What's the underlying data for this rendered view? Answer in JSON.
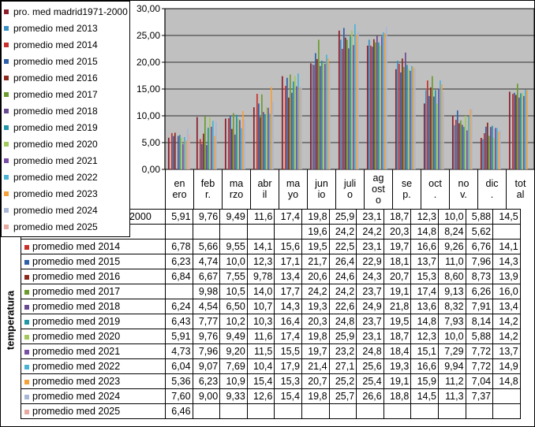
{
  "chart_data": {
    "type": "bar",
    "ylabel": "temperatura",
    "ylim": [
      0,
      30
    ],
    "yticks": [
      "0,00",
      "5,00",
      "10,00",
      "15,00",
      "20,00",
      "25,00",
      "30,00"
    ],
    "grid": true,
    "legend_position": "top-left",
    "categories": [
      "en\nero",
      "feb\nr.",
      "ma\nrzo",
      "abr\nil",
      "ma\nyo",
      "jun\nio",
      "juli\no",
      "ag\nost\no",
      "se\np.",
      "oct\n.",
      "no\nv.",
      "dic\n.",
      "tot\nal"
    ],
    "series": [
      {
        "name": "pro. med madrid1971-2000",
        "table_name": "pro. med madrid1971-2000",
        "color": "#8b1c2a",
        "values": [
          5.91,
          9.76,
          9.49,
          11.6,
          17.4,
          19.8,
          25.9,
          23.1,
          18.7,
          12.3,
          10.0,
          5.88,
          14.5
        ],
        "labels": [
          "5,91",
          "9,76",
          "9,49",
          "11,6",
          "17,4",
          "19,8",
          "25,9",
          "23,1",
          "18,7",
          "12,3",
          "10,0",
          "5,88",
          "14,5"
        ]
      },
      {
        "name": "promedio med 2013",
        "table_name": "",
        "color": "#3b8fc7",
        "values": [
          null,
          null,
          null,
          null,
          null,
          19.6,
          24.2,
          24.2,
          20.3,
          14.8,
          8.24,
          5.62,
          null
        ],
        "labels": [
          "",
          "",
          "",
          "",
          "",
          "19,6",
          "24,2",
          "24,2",
          "20,3",
          "14,8",
          "8,24",
          "5,62",
          ""
        ]
      },
      {
        "name": "promedio med 2014",
        "table_name": "promedio med 2014",
        "color": "#c9302c",
        "values": [
          6.78,
          5.66,
          9.55,
          14.1,
          15.6,
          19.5,
          22.5,
          23.1,
          19.7,
          16.6,
          9.26,
          6.76,
          14.1
        ],
        "labels": [
          "6,78",
          "5,66",
          "9,55",
          "14,1",
          "15,6",
          "19,5",
          "22,5",
          "23,1",
          "19,7",
          "16,6",
          "9,26",
          "6,76",
          "14,1"
        ]
      },
      {
        "name": "promedio med 2015",
        "table_name": "promedio med 2015",
        "color": "#2f5fa8",
        "values": [
          6.23,
          4.74,
          10.0,
          12.3,
          17.1,
          21.7,
          26.4,
          22.9,
          18.1,
          13.7,
          11.0,
          7.96,
          14.3
        ],
        "labels": [
          "6,23",
          "4,74",
          "10,0",
          "12,3",
          "17,1",
          "21,7",
          "26,4",
          "22,9",
          "18,1",
          "13,7",
          "11,0",
          "7,96",
          "14,3"
        ]
      },
      {
        "name": "promedio med 2016",
        "table_name": "promedio med 2016",
        "color": "#8b2a1c",
        "values": [
          6.84,
          6.67,
          7.55,
          9.78,
          13.4,
          20.6,
          24.6,
          24.3,
          20.7,
          15.3,
          8.6,
          8.73,
          13.9
        ],
        "labels": [
          "6,84",
          "6,67",
          "7,55",
          "9,78",
          "13,4",
          "20,6",
          "24,6",
          "24,3",
          "20,7",
          "15,3",
          "8,60",
          "8,73",
          "13,9"
        ]
      },
      {
        "name": "promedio med 2017",
        "table_name": "promedio med 2017",
        "color": "#6b9b2e",
        "values": [
          null,
          9.98,
          10.5,
          14.0,
          17.7,
          24.2,
          24.2,
          23.7,
          19.1,
          17.4,
          9.13,
          6.26,
          16.0
        ],
        "labels": [
          "",
          "9,98",
          "10,5",
          "14,0",
          "17,7",
          "24,2",
          "24,2",
          "23,7",
          "19,1",
          "17,4",
          "9,13",
          "6,26",
          "16,0"
        ]
      },
      {
        "name": "promedio med 2018",
        "table_name": "promedio med 2018",
        "color": "#6a4a93",
        "values": [
          6.24,
          4.54,
          6.5,
          10.7,
          14.3,
          19.3,
          22.6,
          24.9,
          21.8,
          13.6,
          8.32,
          7.91,
          13.4
        ],
        "labels": [
          "6,24",
          "4,54",
          "6,50",
          "10,7",
          "14,3",
          "19,3",
          "22,6",
          "24,9",
          "21,8",
          "13,6",
          "8,32",
          "7,91",
          "13,4"
        ]
      },
      {
        "name": "promedio med 2019",
        "table_name": "promedio med 2019",
        "color": "#2196a8",
        "values": [
          6.43,
          7.77,
          10.2,
          10.3,
          16.4,
          20.3,
          24.8,
          23.7,
          19.5,
          14.8,
          7.93,
          8.14,
          14.2
        ],
        "labels": [
          "6,43",
          "7,77",
          "10,2",
          "10,3",
          "16,4",
          "20,3",
          "24,8",
          "23,7",
          "19,5",
          "14,8",
          "7,93",
          "8,14",
          "14,2"
        ]
      },
      {
        "name": "promedio med 2020",
        "table_name": "promedio med 2020",
        "color": "#a3c95a",
        "values": [
          5.91,
          9.76,
          9.49,
          11.6,
          17.4,
          19.8,
          25.9,
          23.1,
          18.7,
          12.3,
          10.0,
          5.88,
          14.2
        ],
        "labels": [
          "5,91",
          "9,76",
          "9,49",
          "11,6",
          "17,4",
          "19,8",
          "25,9",
          "23,1",
          "18,7",
          "12,3",
          "10,0",
          "5,88",
          "14,2"
        ]
      },
      {
        "name": "promedio med 2021",
        "table_name": "promedio med 2021",
        "color": "#7a4fa3",
        "values": [
          4.73,
          7.96,
          9.2,
          11.5,
          15.5,
          19.7,
          23.2,
          24.8,
          18.4,
          15.1,
          7.29,
          7.72,
          13.7
        ],
        "labels": [
          "4,73",
          "7,96",
          "9,20",
          "11,5",
          "15,5",
          "19,7",
          "23,2",
          "24,8",
          "18,4",
          "15,1",
          "7,29",
          "7,72",
          "13,7"
        ]
      },
      {
        "name": "promedio med 2022",
        "table_name": "promedio med 2022",
        "color": "#4bb3d6",
        "values": [
          6.04,
          9.07,
          7.69,
          10.4,
          17.9,
          21.4,
          27.1,
          25.6,
          19.3,
          16.6,
          9.94,
          7.72,
          14.9
        ],
        "labels": [
          "6,04",
          "9,07",
          "7,69",
          "10,4",
          "17,9",
          "21,4",
          "27,1",
          "25,6",
          "19,3",
          "16,6",
          "9,94",
          "7,72",
          "14,9"
        ]
      },
      {
        "name": "promedio med 2023",
        "table_name": "promedio med 2023",
        "color": "#f5a03a",
        "values": [
          5.36,
          6.23,
          10.9,
          15.4,
          15.3,
          20.7,
          25.2,
          25.4,
          19.1,
          15.9,
          11.2,
          7.04,
          14.8
        ],
        "labels": [
          "5,36",
          "6,23",
          "10,9",
          "15,4",
          "15,3",
          "20,7",
          "25,2",
          "25,4",
          "19,1",
          "15,9",
          "11,2",
          "7,04",
          "14,8"
        ]
      },
      {
        "name": "promedio med 2024",
        "table_name": "promedio med 2024",
        "color": "#a9b7d6",
        "values": [
          7.6,
          9.0,
          9.33,
          12.6,
          15.4,
          19.8,
          25.7,
          26.6,
          18.8,
          14.5,
          11.3,
          7.37,
          null
        ],
        "labels": [
          "7,60",
          "9,00",
          "9,33",
          "12,6",
          "15,4",
          "19,8",
          "25,7",
          "26,6",
          "18,8",
          "14,5",
          "11,3",
          "7,37",
          ""
        ]
      },
      {
        "name": "promedio med 2025",
        "table_name": "promedio med 2025",
        "color": "#e8a9a0",
        "values": [
          6.46,
          null,
          null,
          null,
          null,
          null,
          null,
          null,
          null,
          null,
          null,
          null,
          null
        ],
        "labels": [
          "6,46",
          "",
          "",
          "",
          "",
          "",
          "",
          "",
          "",
          "",
          "",
          "",
          ""
        ]
      }
    ]
  }
}
